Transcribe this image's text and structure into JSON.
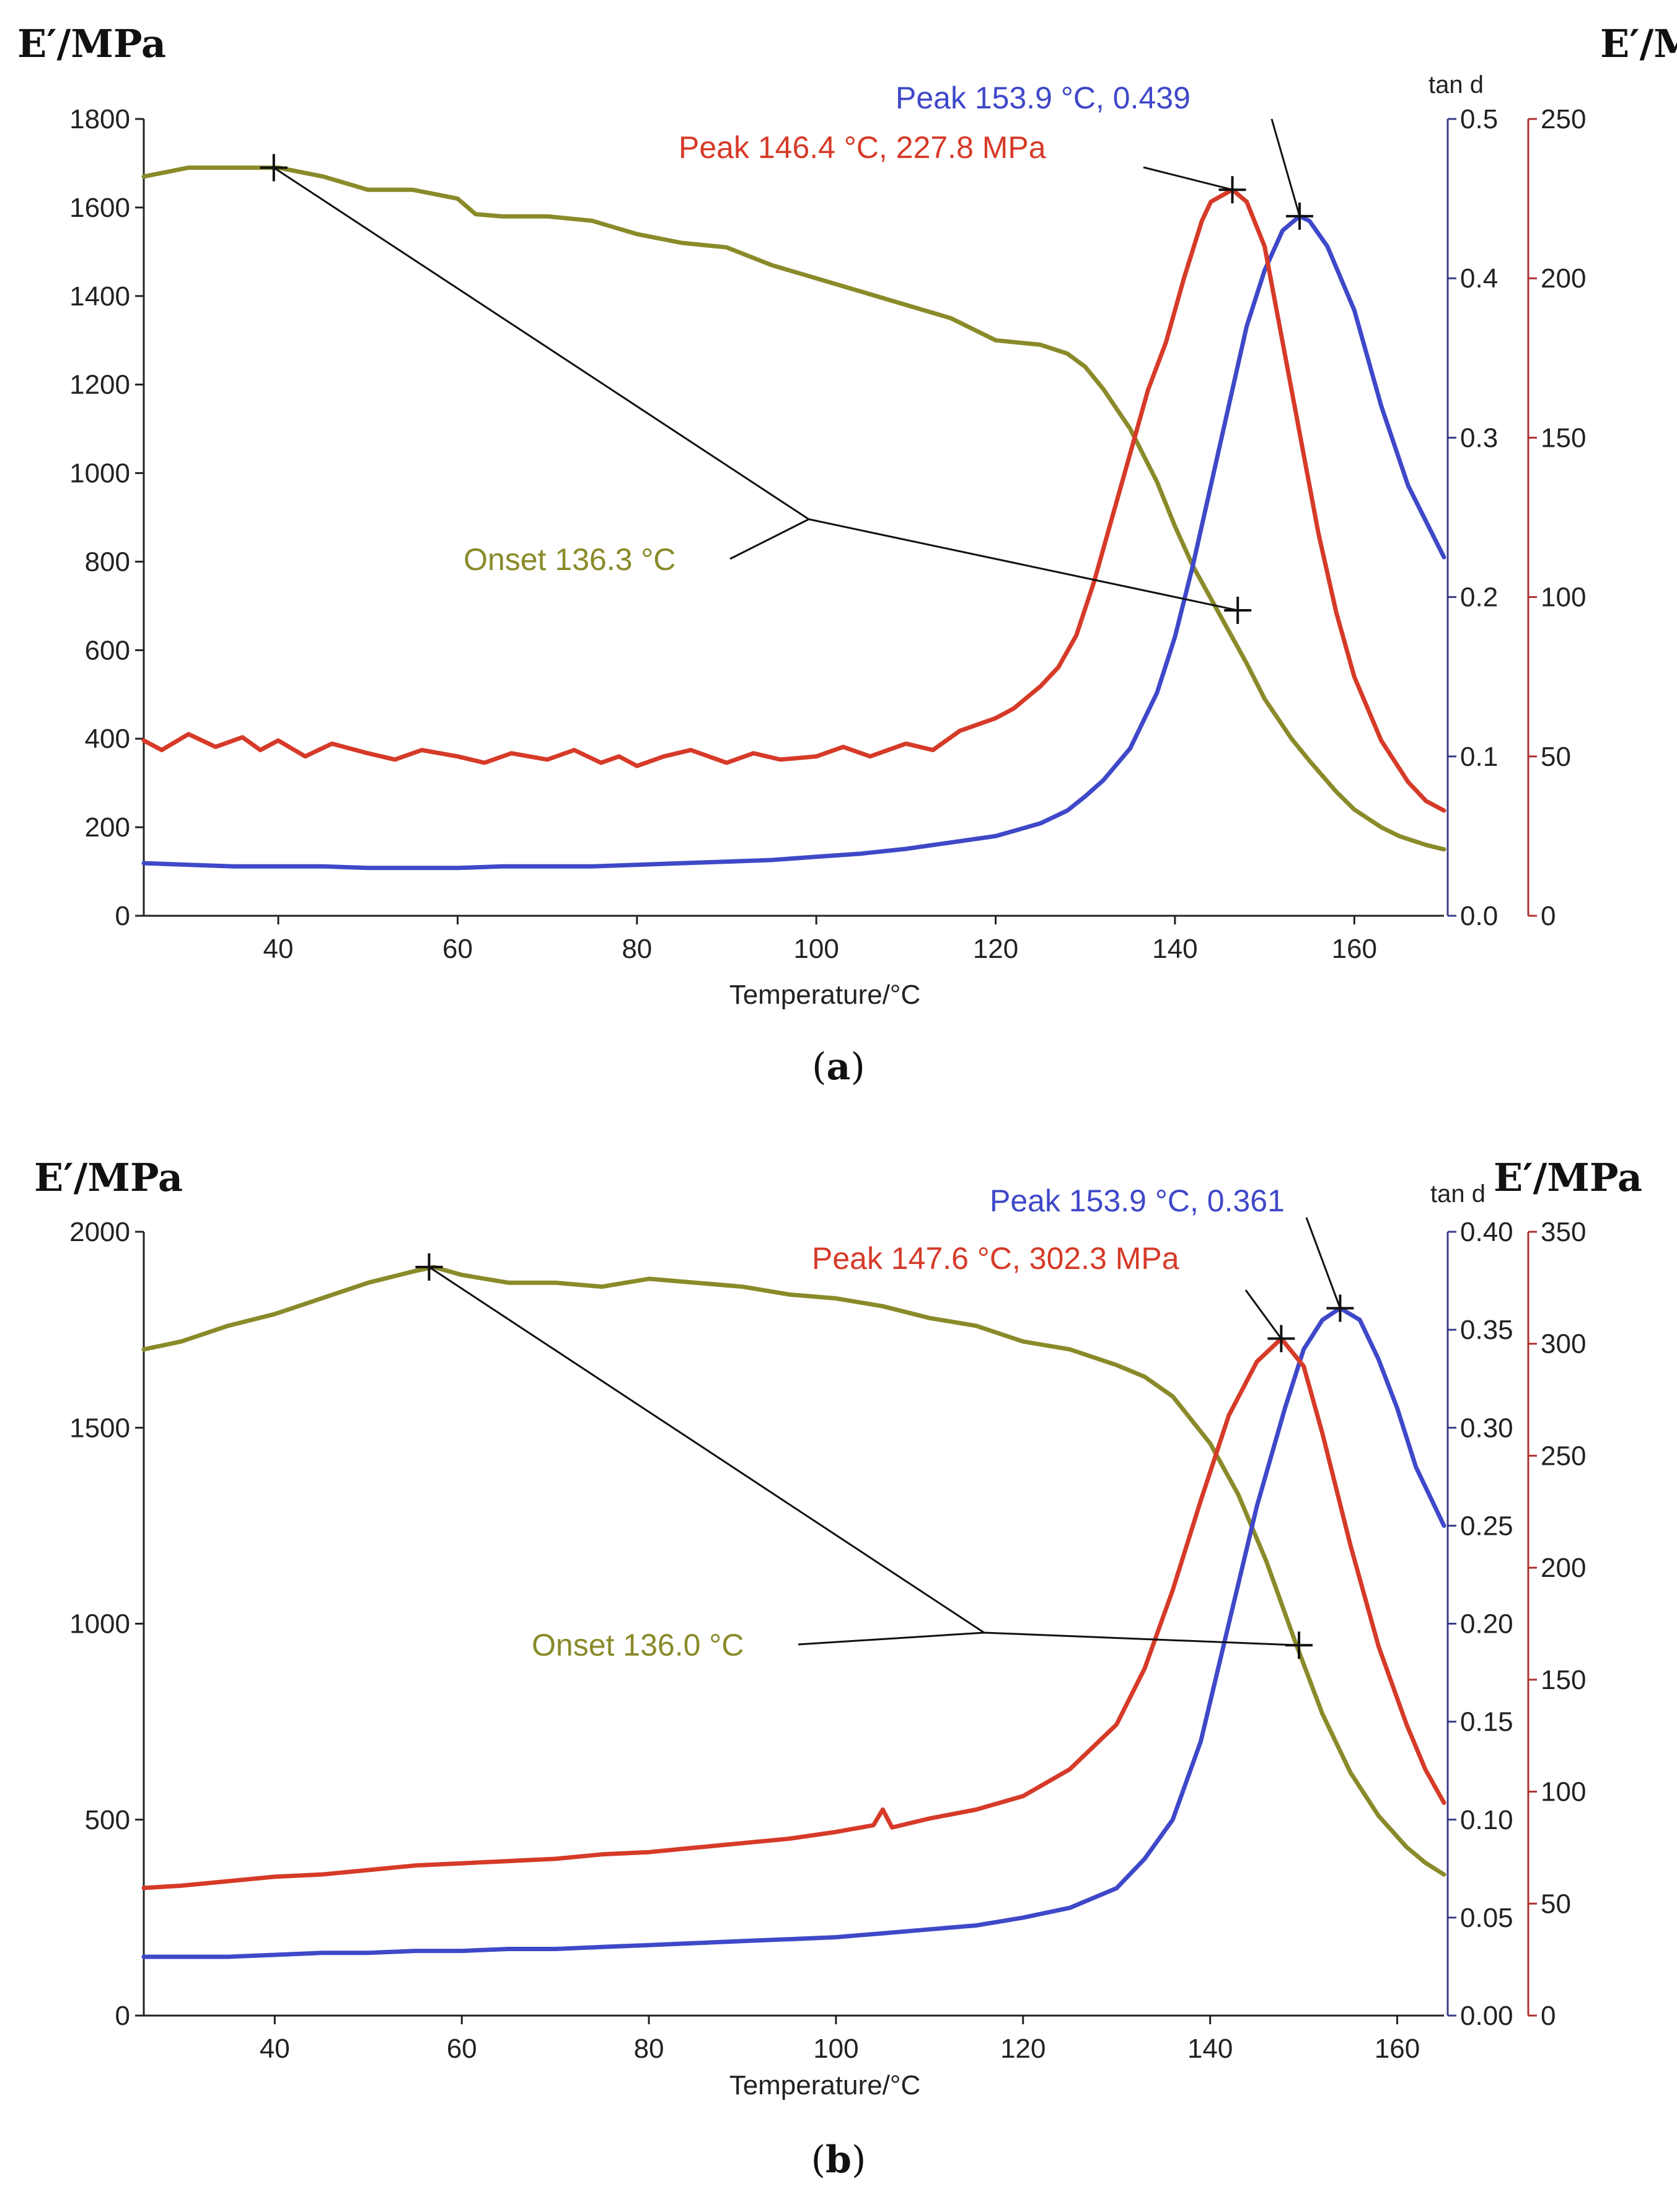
{
  "colors": {
    "storage": "#8a8a2a",
    "tan": "#3f48c8",
    "loss": "#d63a28",
    "axis": "#222222",
    "tanAxis": "#3b3b8a",
    "lossAxis": "#b03030",
    "leader": "#111111"
  },
  "chart_data": [
    {
      "type": "line",
      "panel_label": "(a)",
      "panel_letter": "a",
      "left_title": "E′/MPa",
      "right_title": "E′/MPa",
      "right_inner_title": "tan d",
      "xlabel": "Temperature/°C",
      "xlim": [
        25,
        170
      ],
      "xticks": [
        40,
        60,
        80,
        100,
        120,
        140,
        160
      ],
      "left_axis": {
        "lim": [
          0,
          1800
        ],
        "ticks": [
          0,
          200,
          400,
          600,
          800,
          1000,
          1200,
          1400,
          1600,
          1800
        ],
        "tick_labels": [
          "0",
          "200",
          "400",
          "600",
          "800",
          "1000",
          "1200",
          "1400",
          "1600",
          "1800"
        ]
      },
      "tan_axis": {
        "lim": [
          0,
          0.5
        ],
        "ticks": [
          0,
          0.1,
          0.2,
          0.3,
          0.4,
          0.5
        ],
        "tick_labels": [
          "0.0",
          "0.1",
          "0.2",
          "0.3",
          "0.4",
          "0.5"
        ]
      },
      "loss_axis": {
        "lim": [
          0,
          250
        ],
        "ticks": [
          0,
          50,
          100,
          150,
          200,
          250
        ],
        "tick_labels": [
          "0",
          "50",
          "100",
          "150",
          "200",
          "250"
        ]
      },
      "series": [
        {
          "name": "storage modulus",
          "axis": "left",
          "color": "#8a8a2a",
          "x": [
            25,
            30,
            35,
            40,
            45,
            50,
            55,
            60,
            62,
            65,
            70,
            75,
            80,
            85,
            90,
            95,
            100,
            105,
            110,
            115,
            120,
            125,
            128,
            130,
            132,
            135,
            138,
            140,
            142,
            145,
            148,
            150,
            153,
            155,
            158,
            160,
            163,
            165,
            168,
            170
          ],
          "y": [
            1670,
            1690,
            1690,
            1690,
            1670,
            1640,
            1640,
            1620,
            1585,
            1580,
            1580,
            1570,
            1540,
            1520,
            1510,
            1470,
            1440,
            1410,
            1380,
            1350,
            1300,
            1290,
            1270,
            1240,
            1190,
            1100,
            980,
            880,
            790,
            680,
            570,
            490,
            400,
            350,
            280,
            240,
            200,
            180,
            160,
            150
          ]
        },
        {
          "name": "tan delta",
          "axis": "tan",
          "color": "#3f48c8",
          "x": [
            25,
            30,
            35,
            40,
            45,
            50,
            55,
            60,
            65,
            70,
            75,
            80,
            85,
            90,
            95,
            100,
            105,
            110,
            115,
            120,
            125,
            128,
            130,
            132,
            135,
            138,
            140,
            142,
            144,
            146,
            148,
            150,
            152,
            153.9,
            155,
            157,
            160,
            163,
            166,
            170
          ],
          "y": [
            0.033,
            0.032,
            0.031,
            0.031,
            0.031,
            0.03,
            0.03,
            0.03,
            0.031,
            0.031,
            0.031,
            0.032,
            0.033,
            0.034,
            0.035,
            0.037,
            0.039,
            0.042,
            0.046,
            0.05,
            0.058,
            0.066,
            0.075,
            0.085,
            0.105,
            0.14,
            0.175,
            0.22,
            0.27,
            0.32,
            0.37,
            0.405,
            0.43,
            0.439,
            0.436,
            0.42,
            0.38,
            0.32,
            0.27,
            0.225
          ]
        },
        {
          "name": "loss modulus",
          "axis": "loss",
          "color": "#d63a28",
          "x": [
            25,
            27,
            30,
            33,
            36,
            38,
            40,
            43,
            46,
            50,
            53,
            56,
            60,
            63,
            66,
            70,
            73,
            76,
            78,
            80,
            83,
            86,
            90,
            93,
            96,
            100,
            103,
            106,
            110,
            113,
            116,
            120,
            122,
            125,
            127,
            129,
            131,
            133,
            135,
            137,
            139,
            141,
            143,
            144,
            146.4,
            148,
            150,
            152,
            154,
            156,
            158,
            160,
            163,
            166,
            168,
            170
          ],
          "y": [
            55,
            52,
            57,
            53,
            56,
            52,
            55,
            50,
            54,
            51,
            49,
            52,
            50,
            48,
            51,
            49,
            52,
            48,
            50,
            47,
            50,
            52,
            48,
            51,
            49,
            50,
            53,
            50,
            54,
            52,
            58,
            62,
            65,
            72,
            78,
            88,
            105,
            125,
            145,
            165,
            180,
            200,
            218,
            224,
            227.8,
            224,
            210,
            180,
            150,
            120,
            95,
            75,
            55,
            42,
            36,
            33
          ]
        }
      ],
      "markers": [
        {
          "series": "storage",
          "x": 39.5,
          "y": 1690
        },
        {
          "series": "storage",
          "x": 147.0,
          "y": 690
        },
        {
          "series": "loss",
          "x": 146.4,
          "y": 227.8
        },
        {
          "series": "tan",
          "x": 153.9,
          "y": 0.439
        }
      ],
      "annotations": [
        {
          "text": "Peak 153.9 °C, 0.439",
          "color": "#3f48c8"
        },
        {
          "text": "Peak 146.4 °C, 227.8 MPa",
          "color": "#d63a28"
        },
        {
          "text": "Onset 136.3 °C",
          "color": "#8a8a2a"
        }
      ]
    },
    {
      "type": "line",
      "panel_label": "(b)",
      "panel_letter": "b",
      "left_title": "E′/MPa",
      "right_title": "E′/MPa",
      "right_inner_title": "tan d",
      "xlabel": "Temperature/°C",
      "xlim": [
        26,
        165
      ],
      "xticks": [
        40,
        60,
        80,
        100,
        120,
        140,
        160
      ],
      "left_axis": {
        "lim": [
          0,
          2000
        ],
        "ticks": [
          0,
          500,
          1000,
          1500,
          2000
        ],
        "tick_labels": [
          "0",
          "500",
          "1000",
          "1500",
          "2000"
        ]
      },
      "tan_axis": {
        "lim": [
          0,
          0.4
        ],
        "ticks": [
          0,
          0.05,
          0.1,
          0.15,
          0.2,
          0.25,
          0.3,
          0.35,
          0.4
        ],
        "tick_labels": [
          "0.00",
          "0.05",
          "0.10",
          "0.15",
          "0.20",
          "0.25",
          "0.30",
          "0.35",
          "0.40"
        ]
      },
      "loss_axis": {
        "lim": [
          0,
          350
        ],
        "ticks": [
          0,
          50,
          100,
          150,
          200,
          250,
          300,
          350
        ],
        "tick_labels": [
          "0",
          "50",
          "100",
          "150",
          "200",
          "250",
          "300",
          "350"
        ]
      },
      "series": [
        {
          "name": "storage modulus",
          "axis": "left",
          "color": "#8a8a2a",
          "x": [
            26,
            30,
            35,
            40,
            45,
            50,
            55,
            57,
            60,
            65,
            70,
            75,
            80,
            85,
            90,
            95,
            100,
            105,
            110,
            115,
            120,
            125,
            130,
            133,
            136,
            140,
            143,
            146,
            149,
            152,
            155,
            158,
            161,
            163,
            165
          ],
          "y": [
            1700,
            1720,
            1760,
            1790,
            1830,
            1870,
            1900,
            1910,
            1890,
            1870,
            1870,
            1860,
            1880,
            1870,
            1860,
            1840,
            1830,
            1810,
            1780,
            1760,
            1720,
            1700,
            1660,
            1630,
            1580,
            1460,
            1330,
            1160,
            960,
            770,
            620,
            510,
            430,
            390,
            360
          ]
        },
        {
          "name": "tan delta",
          "axis": "tan",
          "color": "#3f48c8",
          "x": [
            26,
            30,
            35,
            40,
            45,
            50,
            55,
            60,
            65,
            70,
            75,
            80,
            85,
            90,
            95,
            100,
            105,
            110,
            115,
            120,
            125,
            130,
            133,
            136,
            139,
            142,
            145,
            148,
            150,
            152,
            153.9,
            156,
            158,
            160,
            162,
            165
          ],
          "y": [
            0.03,
            0.03,
            0.03,
            0.031,
            0.032,
            0.032,
            0.033,
            0.033,
            0.034,
            0.034,
            0.035,
            0.036,
            0.037,
            0.038,
            0.039,
            0.04,
            0.042,
            0.044,
            0.046,
            0.05,
            0.055,
            0.065,
            0.08,
            0.1,
            0.14,
            0.2,
            0.26,
            0.31,
            0.34,
            0.355,
            0.361,
            0.355,
            0.335,
            0.31,
            0.28,
            0.25
          ]
        },
        {
          "name": "loss modulus",
          "axis": "loss",
          "color": "#d63a28",
          "x": [
            26,
            30,
            35,
            40,
            45,
            50,
            55,
            60,
            65,
            70,
            75,
            80,
            85,
            90,
            95,
            100,
            104,
            105,
            106,
            110,
            115,
            120,
            125,
            130,
            133,
            136,
            139,
            142,
            145,
            147.6,
            150,
            152,
            155,
            158,
            161,
            163,
            165
          ],
          "y": [
            57,
            58,
            60,
            62,
            63,
            65,
            67,
            68,
            69,
            70,
            72,
            73,
            75,
            77,
            79,
            82,
            85,
            92,
            84,
            88,
            92,
            98,
            110,
            130,
            155,
            190,
            230,
            268,
            292,
            302.3,
            290,
            260,
            210,
            165,
            130,
            110,
            95
          ]
        }
      ],
      "markers": [
        {
          "series": "storage",
          "x": 56.5,
          "y": 1910
        },
        {
          "series": "storage",
          "x": 149.5,
          "y": 945
        },
        {
          "series": "loss",
          "x": 147.6,
          "y": 302.3
        },
        {
          "series": "tan",
          "x": 153.9,
          "y": 0.361
        }
      ],
      "annotations": [
        {
          "text": "Peak 153.9 °C, 0.361",
          "color": "#3f48c8"
        },
        {
          "text": "Peak 147.6 °C, 302.3 MPa",
          "color": "#d63a28"
        },
        {
          "text": "Onset 136.0 °C",
          "color": "#8a8a2a"
        }
      ]
    }
  ]
}
